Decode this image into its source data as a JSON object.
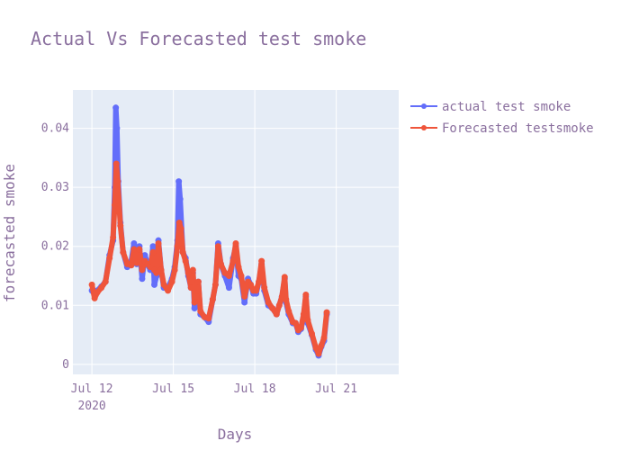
{
  "chart_data": {
    "type": "line",
    "title": "Actual Vs Forecasted test smoke",
    "xlabel": "Days",
    "ylabel": "forecasted smoke",
    "x_ticks": [
      {
        "line1": "Jul 12",
        "line2": "2020",
        "day": 0
      },
      {
        "line1": "Jul 15",
        "line2": "",
        "day": 3
      },
      {
        "line1": "Jul 18",
        "line2": "",
        "day": 6
      },
      {
        "line1": "Jul 21",
        "line2": "",
        "day": 9
      }
    ],
    "y_ticks": [
      0,
      0.01,
      0.02,
      0.03,
      0.04
    ],
    "y_tick_labels": [
      "0",
      "0.01",
      "0.02",
      "0.03",
      "0.04"
    ],
    "xlim_days": [
      -0.7,
      11.3
    ],
    "ylim": [
      -0.0017,
      0.0465
    ],
    "grid": true,
    "legend": "top-right",
    "series": [
      {
        "name": "actual test smoke",
        "color": "#636efa",
        "points": [
          [
            0.0,
            0.0125
          ],
          [
            0.1,
            0.0118
          ],
          [
            0.2,
            0.0125
          ],
          [
            0.35,
            0.0132
          ],
          [
            0.5,
            0.014
          ],
          [
            0.65,
            0.0185
          ],
          [
            0.78,
            0.021
          ],
          [
            0.84,
            0.03
          ],
          [
            0.88,
            0.0435
          ],
          [
            0.92,
            0.04
          ],
          [
            0.97,
            0.031
          ],
          [
            1.05,
            0.024
          ],
          [
            1.15,
            0.019
          ],
          [
            1.3,
            0.0165
          ],
          [
            1.45,
            0.0175
          ],
          [
            1.55,
            0.0205
          ],
          [
            1.65,
            0.017
          ],
          [
            1.75,
            0.02
          ],
          [
            1.85,
            0.0145
          ],
          [
            1.95,
            0.0185
          ],
          [
            2.05,
            0.017
          ],
          [
            2.15,
            0.016
          ],
          [
            2.25,
            0.02
          ],
          [
            2.3,
            0.0135
          ],
          [
            2.38,
            0.015
          ],
          [
            2.45,
            0.021
          ],
          [
            2.55,
            0.016
          ],
          [
            2.65,
            0.013
          ],
          [
            2.8,
            0.013
          ],
          [
            2.95,
            0.0145
          ],
          [
            3.05,
            0.0165
          ],
          [
            3.15,
            0.021
          ],
          [
            3.2,
            0.031
          ],
          [
            3.25,
            0.028
          ],
          [
            3.35,
            0.019
          ],
          [
            3.45,
            0.018
          ],
          [
            3.55,
            0.015
          ],
          [
            3.65,
            0.013
          ],
          [
            3.72,
            0.0155
          ],
          [
            3.78,
            0.0095
          ],
          [
            3.85,
            0.011
          ],
          [
            3.92,
            0.014
          ],
          [
            4.0,
            0.0085
          ],
          [
            4.15,
            0.008
          ],
          [
            4.3,
            0.0072
          ],
          [
            4.45,
            0.011
          ],
          [
            4.55,
            0.0135
          ],
          [
            4.65,
            0.0205
          ],
          [
            4.75,
            0.017
          ],
          [
            4.9,
            0.015
          ],
          [
            5.05,
            0.013
          ],
          [
            5.2,
            0.018
          ],
          [
            5.3,
            0.02
          ],
          [
            5.4,
            0.015
          ],
          [
            5.5,
            0.0145
          ],
          [
            5.62,
            0.0105
          ],
          [
            5.75,
            0.0145
          ],
          [
            5.85,
            0.0135
          ],
          [
            5.95,
            0.012
          ],
          [
            6.05,
            0.012
          ],
          [
            6.15,
            0.014
          ],
          [
            6.25,
            0.017
          ],
          [
            6.35,
            0.0125
          ],
          [
            6.5,
            0.01
          ],
          [
            6.65,
            0.0095
          ],
          [
            6.8,
            0.0085
          ],
          [
            6.9,
            0.01
          ],
          [
            7.0,
            0.0115
          ],
          [
            7.1,
            0.0145
          ],
          [
            7.15,
            0.0105
          ],
          [
            7.25,
            0.0085
          ],
          [
            7.4,
            0.007
          ],
          [
            7.5,
            0.007
          ],
          [
            7.6,
            0.0055
          ],
          [
            7.7,
            0.006
          ],
          [
            7.8,
            0.008
          ],
          [
            7.88,
            0.0115
          ],
          [
            7.95,
            0.007
          ],
          [
            8.1,
            0.005
          ],
          [
            8.25,
            0.0025
          ],
          [
            8.35,
            0.0015
          ],
          [
            8.45,
            0.003
          ],
          [
            8.55,
            0.004
          ],
          [
            8.65,
            0.0085
          ]
        ]
      },
      {
        "name": "Forecasted testsmoke",
        "color": "#ef553b",
        "points": [
          [
            0.0,
            0.0135
          ],
          [
            0.1,
            0.0112
          ],
          [
            0.2,
            0.0122
          ],
          [
            0.35,
            0.013
          ],
          [
            0.5,
            0.014
          ],
          [
            0.65,
            0.018
          ],
          [
            0.78,
            0.0215
          ],
          [
            0.84,
            0.027
          ],
          [
            0.9,
            0.034
          ],
          [
            0.95,
            0.031
          ],
          [
            1.05,
            0.0235
          ],
          [
            1.15,
            0.019
          ],
          [
            1.3,
            0.017
          ],
          [
            1.45,
            0.0168
          ],
          [
            1.55,
            0.0195
          ],
          [
            1.65,
            0.0172
          ],
          [
            1.75,
            0.0195
          ],
          [
            1.85,
            0.016
          ],
          [
            1.95,
            0.0175
          ],
          [
            2.05,
            0.017
          ],
          [
            2.15,
            0.0165
          ],
          [
            2.25,
            0.019
          ],
          [
            2.3,
            0.016
          ],
          [
            2.38,
            0.0155
          ],
          [
            2.45,
            0.0205
          ],
          [
            2.55,
            0.016
          ],
          [
            2.65,
            0.0135
          ],
          [
            2.8,
            0.0125
          ],
          [
            2.95,
            0.014
          ],
          [
            3.05,
            0.016
          ],
          [
            3.15,
            0.02
          ],
          [
            3.22,
            0.024
          ],
          [
            3.28,
            0.023
          ],
          [
            3.35,
            0.019
          ],
          [
            3.45,
            0.0175
          ],
          [
            3.55,
            0.0155
          ],
          [
            3.65,
            0.013
          ],
          [
            3.72,
            0.016
          ],
          [
            3.78,
            0.0105
          ],
          [
            3.85,
            0.0115
          ],
          [
            3.92,
            0.014
          ],
          [
            4.0,
            0.009
          ],
          [
            4.15,
            0.008
          ],
          [
            4.3,
            0.0078
          ],
          [
            4.45,
            0.011
          ],
          [
            4.55,
            0.0135
          ],
          [
            4.65,
            0.02
          ],
          [
            4.75,
            0.017
          ],
          [
            4.9,
            0.0155
          ],
          [
            5.05,
            0.015
          ],
          [
            5.2,
            0.0175
          ],
          [
            5.3,
            0.0205
          ],
          [
            5.4,
            0.0165
          ],
          [
            5.5,
            0.015
          ],
          [
            5.62,
            0.0115
          ],
          [
            5.75,
            0.014
          ],
          [
            5.85,
            0.0135
          ],
          [
            5.95,
            0.0125
          ],
          [
            6.05,
            0.0125
          ],
          [
            6.15,
            0.014
          ],
          [
            6.25,
            0.0175
          ],
          [
            6.35,
            0.013
          ],
          [
            6.5,
            0.0105
          ],
          [
            6.65,
            0.0095
          ],
          [
            6.8,
            0.0085
          ],
          [
            6.9,
            0.01
          ],
          [
            7.0,
            0.0115
          ],
          [
            7.1,
            0.0148
          ],
          [
            7.15,
            0.011
          ],
          [
            7.25,
            0.009
          ],
          [
            7.4,
            0.0072
          ],
          [
            7.5,
            0.007
          ],
          [
            7.6,
            0.0058
          ],
          [
            7.7,
            0.0062
          ],
          [
            7.8,
            0.0085
          ],
          [
            7.88,
            0.0118
          ],
          [
            7.95,
            0.0075
          ],
          [
            8.1,
            0.0052
          ],
          [
            8.25,
            0.0028
          ],
          [
            8.35,
            0.0018
          ],
          [
            8.45,
            0.0032
          ],
          [
            8.55,
            0.0045
          ],
          [
            8.65,
            0.0088
          ]
        ]
      }
    ]
  }
}
